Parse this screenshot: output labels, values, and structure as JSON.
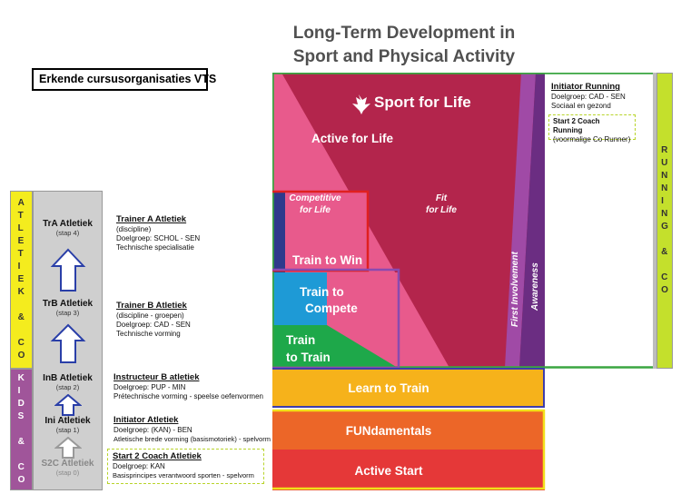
{
  "title": {
    "line1": "Long-Term Development in",
    "line2": "Sport and Physical Activity"
  },
  "org_label": "Erkende cursusorganisaties VTS",
  "sides": {
    "atletiek": [
      "A",
      "T",
      "L",
      "E",
      "T",
      "I",
      "E",
      "K",
      "",
      "&",
      "",
      "C",
      "O"
    ],
    "kids": [
      "K",
      "I",
      "D",
      "S",
      "",
      "&",
      "",
      "C",
      "O"
    ],
    "running": [
      "R",
      "U",
      "N",
      "N",
      "I",
      "N",
      "G",
      "",
      "&",
      "",
      "C",
      "O"
    ]
  },
  "steps": [
    {
      "name": "TrA Atletiek",
      "sub": "(stap 4)"
    },
    {
      "name": "TrB Atletiek",
      "sub": "(stap 3)"
    },
    {
      "name": "InB Atletiek",
      "sub": "(stap 2)"
    },
    {
      "name": "Ini Atletiek",
      "sub": "(stap 1)"
    },
    {
      "name": "S2C Atletiek",
      "sub": "(stap 0)"
    }
  ],
  "cards": {
    "trainer_a": {
      "title": "Trainer A Atletiek",
      "lines": [
        "(discipline)",
        "Doelgroep: SCHOL - SEN",
        "Technische specialisatie"
      ]
    },
    "trainer_b": {
      "title": "Trainer B Atletiek",
      "lines": [
        "(discipline - groepen)",
        "Doelgroep: CAD - SEN",
        "Technische vorming"
      ]
    },
    "instructeur_b": {
      "title": "Instructeur B atletiek",
      "lines": [
        "Doelgroep: PUP - MIN",
        "Prétechnische vorming - speelse oefenvormen"
      ]
    },
    "initiator": {
      "title": "Initiator Atletiek",
      "lines": [
        "Doelgroep: (KAN) - BEN",
        "Atletische brede vorming (basismotoriek) - spelvorm"
      ]
    },
    "start2coach": {
      "title": "Start 2 Coach Atletiek",
      "lines": [
        "Doelgroep: KAN",
        "Basisprincipes verantwoord sporten - spelvorm"
      ]
    },
    "initiator_running": {
      "title": "Initiator Running",
      "lines": [
        "Doelgroep: CAD - SEN",
        "Sociaal en gezond"
      ]
    },
    "s2c_running": {
      "title": "Start 2 Coach Running",
      "lines": [
        "(voormalige Co Runner)"
      ]
    }
  },
  "ltd": {
    "logo": "Sport for Life",
    "active_for_life": "Active for Life",
    "competitive": [
      "Competitive",
      "for Life"
    ],
    "fit": [
      "Fit",
      "for Life"
    ],
    "first_involvement": "First Involvement",
    "awareness": "Awareness",
    "train_to_win": "Train to Win",
    "train_to_compete": [
      "Train to",
      "Compete"
    ],
    "train_to_train": [
      "Train",
      "to Train"
    ],
    "learn_to_train": "Learn to Train",
    "fundamentals": "FUNdamentals",
    "active_start": "Active Start"
  },
  "colors": {
    "crimson": "#b3254c",
    "pink": "#e85a8c",
    "navy": "#2e3a8c",
    "blue": "#1e9ad6",
    "green": "#1ea84a",
    "yellow": "#f6b21b",
    "orange": "#ec6628",
    "red": "#e53838",
    "purple": "#7b3c98",
    "lime": "#c4e02c"
  }
}
